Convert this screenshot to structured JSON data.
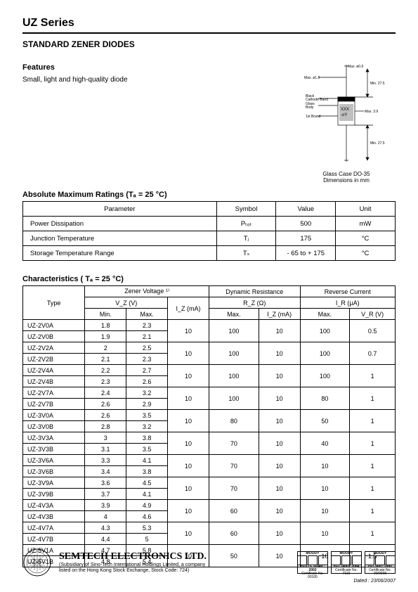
{
  "header": {
    "series": "UZ Series",
    "subtitle": "STANDARD ZENER DIODES"
  },
  "features": {
    "label": "Features",
    "desc": "Small, light and high-quality diode"
  },
  "package": {
    "caption_line1": "Glass Case DO-35",
    "caption_line2": "Dimensions in mm",
    "dims": {
      "top_d": "Max. ø0.6",
      "wire_d": "Max. ø1.9",
      "body_h": "Min. 27.5",
      "body_h2": "Min. 27.5",
      "body_w": "Max. 3.9",
      "labels": [
        "Black",
        "Cathode Band",
        "Glass",
        "Body",
        "1st Brand"
      ],
      "code": "XXX",
      "code2": "-oY"
    }
  },
  "amr": {
    "title": "Absolute Maximum Ratings (Tₐ = 25 °C)",
    "headers": [
      "Parameter",
      "Symbol",
      "Value",
      "Unit"
    ],
    "rows": [
      [
        "Power Dissipation",
        "Pₜₒₜ",
        "500",
        "mW"
      ],
      [
        "Junction Temperature",
        "Tⱼ",
        "175",
        "°C"
      ],
      [
        "Storage Temperature Range",
        "Tₛ",
        "- 65 to + 175",
        "°C"
      ]
    ],
    "col_widths": [
      "52%",
      "16%",
      "16%",
      "16%"
    ]
  },
  "char": {
    "title": "Characteristics ( Tₐ = 25 °C)",
    "group_headers": {
      "type": "Type",
      "zener": "Zener Voltage ¹⁾",
      "dyn": "Dynamic Resistance",
      "rev": "Reverse Current"
    },
    "sub_headers": {
      "vz": "V_Z (V)",
      "rz": "R_Z (Ω)",
      "ir": "I_R (µA)"
    },
    "col_headers": [
      "Min.",
      "Max.",
      "I_Z (mA)",
      "Max.",
      "I_Z (mA)",
      "Max.",
      "V_R (V)"
    ],
    "pairs": [
      {
        "a": {
          "type": "UZ-2V0A",
          "min": "1.8",
          "max": "2.3"
        },
        "b": {
          "type": "UZ-2V0B",
          "min": "1.9",
          "max": "2.1"
        },
        "iz": "10",
        "rzmax": "100",
        "rziz": "10",
        "irmax": "100",
        "vr": "0.5"
      },
      {
        "a": {
          "type": "UZ-2V2A",
          "min": "2",
          "max": "2.5"
        },
        "b": {
          "type": "UZ-2V2B",
          "min": "2.1",
          "max": "2.3"
        },
        "iz": "10",
        "rzmax": "100",
        "rziz": "10",
        "irmax": "100",
        "vr": "0.7"
      },
      {
        "a": {
          "type": "UZ-2V4A",
          "min": "2.2",
          "max": "2.7"
        },
        "b": {
          "type": "UZ-2V4B",
          "min": "2.3",
          "max": "2.6"
        },
        "iz": "10",
        "rzmax": "100",
        "rziz": "10",
        "irmax": "100",
        "vr": "1"
      },
      {
        "a": {
          "type": "UZ-2V7A",
          "min": "2.4",
          "max": "3.2"
        },
        "b": {
          "type": "UZ-2V7B",
          "min": "2.6",
          "max": "2.9"
        },
        "iz": "10",
        "rzmax": "100",
        "rziz": "10",
        "irmax": "80",
        "vr": "1"
      },
      {
        "a": {
          "type": "UZ-3V0A",
          "min": "2.6",
          "max": "3.5"
        },
        "b": {
          "type": "UZ-3V0B",
          "min": "2.8",
          "max": "3.2"
        },
        "iz": "10",
        "rzmax": "80",
        "rziz": "10",
        "irmax": "50",
        "vr": "1"
      },
      {
        "a": {
          "type": "UZ-3V3A",
          "min": "3",
          "max": "3.8"
        },
        "b": {
          "type": "UZ-3V3B",
          "min": "3.1",
          "max": "3.5"
        },
        "iz": "10",
        "rzmax": "70",
        "rziz": "10",
        "irmax": "40",
        "vr": "1"
      },
      {
        "a": {
          "type": "UZ-3V6A",
          "min": "3.3",
          "max": "4.1"
        },
        "b": {
          "type": "UZ-3V6B",
          "min": "3.4",
          "max": "3.8"
        },
        "iz": "10",
        "rzmax": "70",
        "rziz": "10",
        "irmax": "10",
        "vr": "1"
      },
      {
        "a": {
          "type": "UZ-3V9A",
          "min": "3.6",
          "max": "4.5"
        },
        "b": {
          "type": "UZ-3V9B",
          "min": "3.7",
          "max": "4.1"
        },
        "iz": "10",
        "rzmax": "70",
        "rziz": "10",
        "irmax": "10",
        "vr": "1"
      },
      {
        "a": {
          "type": "UZ-4V3A",
          "min": "3.9",
          "max": "4.9"
        },
        "b": {
          "type": "UZ-4V3B",
          "min": "4",
          "max": "4.6"
        },
        "iz": "10",
        "rzmax": "60",
        "rziz": "10",
        "irmax": "10",
        "vr": "1"
      },
      {
        "a": {
          "type": "UZ-4V7A",
          "min": "4.3",
          "max": "5.3"
        },
        "b": {
          "type": "UZ-4V7B",
          "min": "4.4",
          "max": "5"
        },
        "iz": "10",
        "rzmax": "60",
        "rziz": "10",
        "irmax": "10",
        "vr": "1"
      },
      {
        "a": {
          "type": "UZ-5V1A",
          "min": "4.7",
          "max": "5.8"
        },
        "b": {
          "type": "UZ-5V1B",
          "min": "4.8",
          "max": "5.4"
        },
        "iz": "10",
        "rzmax": "50",
        "rziz": "10",
        "irmax": "10",
        "vr": "1.5"
      }
    ],
    "col_widths": [
      "15%",
      "10%",
      "10%",
      "10%",
      "12%",
      "10%",
      "12%",
      "11%"
    ]
  },
  "footer": {
    "company": "SEMTECH ELECTRONICS LTD.",
    "sub1": "(Subsidiary of Sino-Tech International Holdings Limited, a company",
    "sub2": "listed on the Hong Kong Stock Exchange, Stock Code: 724)",
    "certs": [
      {
        "top": "MOODY",
        "iso": "ISO/TS 16949 : 2002",
        "cert": "Certificate No. 00105"
      },
      {
        "top": "MOODY",
        "iso": "ISO 14001:2004",
        "cert": "Certificate No. 7116"
      },
      {
        "top": "MOODY",
        "iso": "ISO 9001:2000",
        "cert": "Certificate No. 00/0068"
      }
    ],
    "dated": "Dated : 23/06/2007"
  }
}
